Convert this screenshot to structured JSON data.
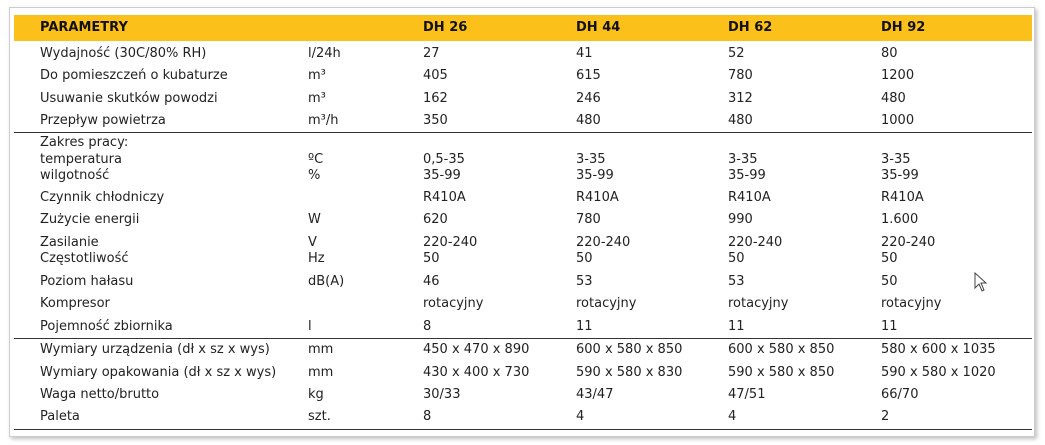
{
  "table": {
    "header": [
      "PARAMETRY",
      "DH 26",
      "DH 44",
      "DH 62",
      "DH 92"
    ],
    "rows": [
      {
        "label": "Wydajność (30C/80% RH)",
        "unit": "l/24h",
        "values": [
          "27",
          "41",
          "52",
          "80"
        ]
      },
      {
        "label": "Do pomieszczeń o kubaturze",
        "unit": "m³",
        "values": [
          "405",
          "615",
          "780",
          "1200"
        ]
      },
      {
        "label": "Usuwanie skutków powodzi",
        "unit": "m³",
        "values": [
          "162",
          "246",
          "312",
          "480"
        ]
      },
      {
        "label": "Przepływ powietrza",
        "unit": "m³/h",
        "values": [
          "350",
          "480",
          "480",
          "1000"
        ]
      },
      {
        "label": "Zakres pracy:"
      },
      {
        "label": "temperatura",
        "unit": "ºC",
        "values": [
          "0,5-35",
          "3-35",
          "3-35",
          "3-35"
        ]
      },
      {
        "label": "wilgotność",
        "unit": "%",
        "values": [
          "35-99",
          "35-99",
          "35-99",
          "35-99"
        ]
      },
      {
        "label": "Czynnik chłodniczy",
        "values": [
          "R410A",
          "R410A",
          "R410A",
          "R410A"
        ]
      },
      {
        "label": "Zużycie energii",
        "unit": "W",
        "values": [
          "620",
          "780",
          "990",
          "1.600"
        ]
      },
      {
        "label": "Zasilanie",
        "unit": "V",
        "values": [
          "220-240",
          "220-240",
          "220-240",
          "220-240"
        ]
      },
      {
        "label": "Częstotliwość",
        "unit": "Hz",
        "values": [
          "50",
          "50",
          "50",
          "50"
        ]
      },
      {
        "label": "Poziom hałasu",
        "unit": "dB(A)",
        "values": [
          "46",
          "53",
          "53",
          "50"
        ]
      },
      {
        "label": "Kompresor",
        "values": [
          "rotacyjny",
          "rotacyjny",
          "rotacyjny",
          "rotacyjny"
        ]
      },
      {
        "label": "Pojemność zbiornika",
        "unit": "l",
        "values": [
          "8",
          "11",
          "11",
          "11"
        ]
      },
      {
        "label": "Wymiary urządzenia (dł x sz x wys)",
        "unit": "mm",
        "values": [
          "450 x 470 x 890",
          "600 x 580 x 850",
          "600 x 580 x 850",
          "580 x 600 x 1035"
        ]
      },
      {
        "label": "Wymiary opakowania (dł x sz x wys)",
        "unit": "mm",
        "values": [
          "430 x 400 x 730",
          "590 x 580 x 830",
          "590 x 580 x 850",
          "590 x 580 x 1020"
        ]
      },
      {
        "label": "Waga netto/brutto",
        "unit": "kg",
        "values": [
          "30/33",
          "43/47",
          "47/51",
          "66/70"
        ]
      },
      {
        "label": "Paleta",
        "unit": "szt.",
        "values": [
          "8",
          "4",
          "4",
          "2"
        ]
      }
    ]
  }
}
